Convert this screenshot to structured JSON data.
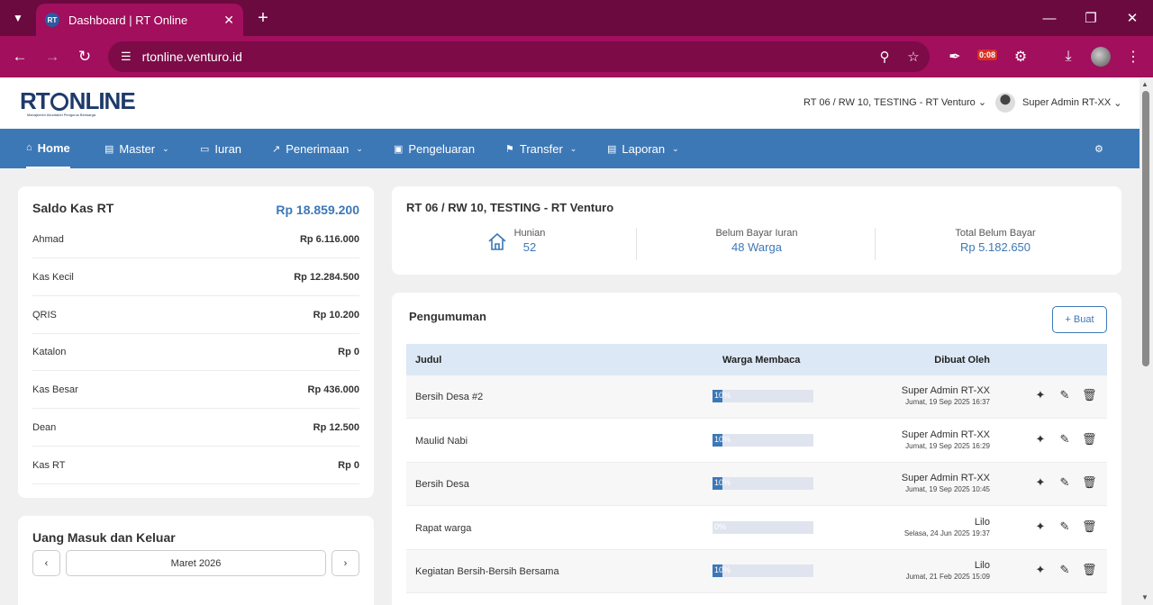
{
  "browser": {
    "tab_title": "Dashboard | RT Online",
    "url": "rtonline.venturo.id",
    "ext_timer": "0:08"
  },
  "header": {
    "logo_text_left": "RT",
    "logo_text_right": "NLINE",
    "logo_sub": "Manajemen Akuntabel Pengurus Berwarga",
    "org": "RT 06 / RW 10, TESTING - RT Venturo",
    "user": "Super Admin RT-XX"
  },
  "nav": [
    {
      "label": "Home",
      "icon": "home-icon"
    },
    {
      "label": "Master",
      "icon": "file-icon"
    },
    {
      "label": "Iuran",
      "icon": "card-icon"
    },
    {
      "label": "Penerimaan",
      "icon": "chart-icon"
    },
    {
      "label": "Pengeluaran",
      "icon": "image-icon"
    },
    {
      "label": "Transfer",
      "icon": "tag-icon"
    },
    {
      "label": "Laporan",
      "icon": "file-icon"
    }
  ],
  "saldo": {
    "title": "Saldo Kas RT",
    "total": "Rp 18.859.200",
    "rows": [
      {
        "name": "Ahmad",
        "amount": "Rp 6.116.000"
      },
      {
        "name": "Kas Kecil",
        "amount": "Rp 12.284.500"
      },
      {
        "name": "QRIS",
        "amount": "Rp 10.200"
      },
      {
        "name": "Katalon",
        "amount": "Rp 0"
      },
      {
        "name": "Kas Besar",
        "amount": "Rp 436.000"
      },
      {
        "name": "Dean",
        "amount": "Rp 12.500"
      },
      {
        "name": "Kas RT",
        "amount": "Rp 0"
      }
    ]
  },
  "summary": {
    "title": "RT 06 / RW 10, TESTING - RT Venturo",
    "hunian_label": "Hunian",
    "hunian_value": "52",
    "belum_label": "Belum Bayar Iuran",
    "belum_value": "48 Warga",
    "total_label": "Total Belum Bayar",
    "total_value": "Rp 5.182.650"
  },
  "pengumuman": {
    "title": "Pengumuman",
    "buat_label": "Buat",
    "columns": [
      "Judul",
      "Warga Membaca",
      "Dibuat Oleh"
    ],
    "rows": [
      {
        "judul": "Bersih Desa #2",
        "read_label": "10%",
        "read_fraction": 0.1,
        "by": "Super Admin RT-XX",
        "date": "Jumat, 19 Sep 2025 16:37"
      },
      {
        "judul": "Maulid Nabi",
        "read_label": "10%",
        "read_fraction": 0.1,
        "by": "Super Admin RT-XX",
        "date": "Jumat, 19 Sep 2025 16:29"
      },
      {
        "judul": "Bersih Desa",
        "read_label": "10%",
        "read_fraction": 0.1,
        "by": "Super Admin RT-XX",
        "date": "Jumat, 19 Sep 2025 10:45"
      },
      {
        "judul": "Rapat warga",
        "read_label": "0%",
        "read_fraction": 0,
        "by": "Lilo",
        "date": "Selasa, 24 Jun 2025 19:37"
      },
      {
        "judul": "Kegiatan Bersih-Bersih Bersama",
        "read_label": "10%",
        "read_fraction": 0.1,
        "by": "Lilo",
        "date": "Jumat, 21 Feb 2025 15:09"
      }
    ]
  },
  "uang": {
    "title": "Uang Masuk dan Keluar",
    "month": "Maret 2026"
  }
}
